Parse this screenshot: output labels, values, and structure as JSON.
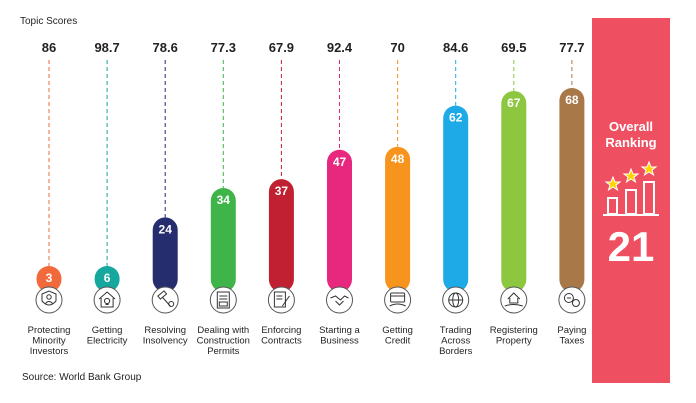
{
  "header": {
    "title": "Topic Scores"
  },
  "footer": {
    "source": "Source: World Bank Group"
  },
  "overall": {
    "title_line1": "Overall",
    "title_line2": "Ranking",
    "rank": "21",
    "icon": "ranking-bars-stars-icon"
  },
  "chart_data": {
    "type": "bar",
    "title": "Topic Scores",
    "value_label": "rank",
    "score_label": "score",
    "ylim": [
      0,
      68
    ],
    "categories": [
      {
        "label_lines": [
          "Protecting",
          "Minority",
          "Investors"
        ],
        "score": "86",
        "rank": 3,
        "color": "#f26a3b",
        "icon": "shield-person-icon"
      },
      {
        "label_lines": [
          "Getting",
          "Electricity"
        ],
        "score": "98.7",
        "rank": 6,
        "color": "#16a79e",
        "icon": "house-bulb-icon"
      },
      {
        "label_lines": [
          "Resolving",
          "Insolvency"
        ],
        "score": "78.6",
        "rank": 24,
        "color": "#252d6e",
        "icon": "gavel-icon"
      },
      {
        "label_lines": [
          "Dealing with",
          "Construction",
          "Permits"
        ],
        "score": "77.3",
        "rank": 34,
        "color": "#3fb549",
        "icon": "permit-document-icon"
      },
      {
        "label_lines": [
          "Enforcing",
          "Contracts"
        ],
        "score": "67.9",
        "rank": 37,
        "color": "#c02032",
        "icon": "contract-pen-icon"
      },
      {
        "label_lines": [
          "Starting a",
          "Business"
        ],
        "score": "92.4",
        "rank": 47,
        "color": "#e8287e",
        "icon": "handshake-icon"
      },
      {
        "label_lines": [
          "Getting",
          "Credit"
        ],
        "score": "70",
        "rank": 48,
        "color": "#f7941d",
        "icon": "credit-card-hand-icon"
      },
      {
        "label_lines": [
          "Trading",
          "Across",
          "Borders"
        ],
        "score": "84.6",
        "rank": 62,
        "color": "#1eaae6",
        "icon": "globe-trade-icon"
      },
      {
        "label_lines": [
          "Registering",
          "Property"
        ],
        "score": "69.5",
        "rank": 67,
        "color": "#8dc63f",
        "icon": "house-hand-icon"
      },
      {
        "label_lines": [
          "Paying",
          "Taxes"
        ],
        "score": "77.7",
        "rank": 68,
        "color": "#a97848",
        "icon": "tax-coins-icon"
      }
    ]
  }
}
